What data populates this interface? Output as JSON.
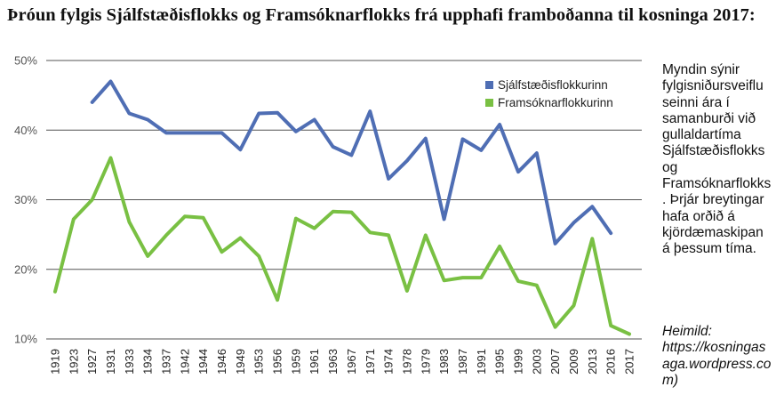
{
  "title": "Þróun fylgis Sjálfstæðisflokks og Framsóknarflokks frá upphafi framboðanna til kosninga 2017:",
  "side_note": "Myndin sýnir fylgisniðursveiflu seinni ára í samanburði við gullaldartíma Sjálfstæðisflokks og Framsóknarflokks. Þrjár breytingar hafa orðið á kjördæmaskipan á þessum tíma.",
  "source": "Heimild: https://kosningasaga.wordpress.com)",
  "colors": {
    "sjalfstaedis": "#4f6eb4",
    "framsokn": "#79c043",
    "grid": "#555555"
  },
  "chart_data": {
    "type": "line",
    "x": [
      "1919",
      "1923",
      "1927",
      "1931",
      "1933",
      "1934",
      "1937",
      "1942",
      "1944",
      "1946",
      "1949",
      "1953",
      "1956",
      "1959",
      "1961",
      "1963",
      "1967",
      "1971",
      "1974",
      "1978",
      "1979",
      "1983",
      "1987",
      "1991",
      "1995",
      "1999",
      "2003",
      "2007",
      "2009",
      "2013",
      "2016",
      "2017"
    ],
    "y_ticks": [
      "10%",
      "20%",
      "30%",
      "40%",
      "50%"
    ],
    "ylim": [
      10,
      50
    ],
    "grid": true,
    "legend_position": "top-right",
    "series": [
      {
        "name": "Sjálfstæðisflokkurinn",
        "color": "#4f6eb4",
        "values": [
          null,
          null,
          44,
          47,
          42.4,
          41.5,
          39.6,
          39.6,
          39.6,
          39.6,
          37.2,
          42.4,
          42.5,
          39.8,
          41.5,
          37.6,
          36.4,
          42.7,
          33,
          35.6,
          38.8,
          27.2,
          38.7,
          37.1,
          40.8,
          34,
          36.7,
          23.7,
          26.7,
          29,
          25.2,
          null
        ]
      },
      {
        "name": "Framsóknarflokkurinn",
        "color": "#79c043",
        "values": [
          16.8,
          27.2,
          30,
          36,
          26.8,
          21.9,
          24.9,
          27.6,
          27.4,
          22.5,
          24.5,
          21.9,
          15.6,
          27.3,
          25.9,
          28.3,
          28.2,
          25.3,
          24.9,
          16.9,
          24.9,
          18.4,
          18.8,
          18.8,
          23.3,
          18.3,
          17.7,
          11.7,
          14.8,
          24.4,
          11.9,
          10.7
        ]
      }
    ]
  }
}
